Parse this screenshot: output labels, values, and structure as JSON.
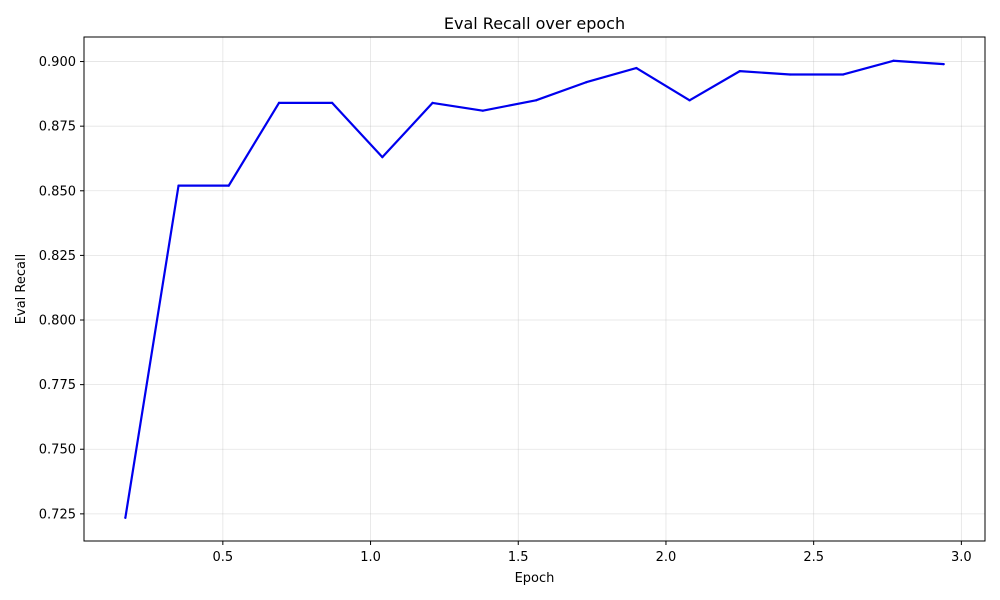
{
  "chart_data": {
    "type": "line",
    "title": "Eval Recall over epoch",
    "xlabel": "Epoch",
    "ylabel": "Eval Recall",
    "xlim": [
      0.03,
      3.08
    ],
    "ylim": [
      0.7145,
      0.9095
    ],
    "xticks": [
      0.5,
      1.0,
      1.5,
      2.0,
      2.5,
      3.0
    ],
    "xtick_labels": [
      "0.5",
      "1.0",
      "1.5",
      "2.0",
      "2.5",
      "3.0"
    ],
    "yticks": [
      0.725,
      0.75,
      0.775,
      0.8,
      0.825,
      0.85,
      0.875,
      0.9
    ],
    "ytick_labels": [
      "0.725",
      "0.750",
      "0.775",
      "0.800",
      "0.825",
      "0.850",
      "0.875",
      "0.900"
    ],
    "grid": true,
    "legend": "none",
    "series": [
      {
        "color": "#0000ee",
        "x": [
          0.17,
          0.35,
          0.52,
          0.69,
          0.87,
          1.04,
          1.21,
          1.38,
          1.56,
          1.73,
          1.9,
          2.08,
          2.25,
          2.42,
          2.6,
          2.77,
          2.94
        ],
        "y": [
          0.7235,
          0.852,
          0.852,
          0.884,
          0.884,
          0.863,
          0.884,
          0.881,
          0.885,
          0.892,
          0.8975,
          0.885,
          0.8963,
          0.895,
          0.895,
          0.9003,
          0.899
        ]
      }
    ]
  }
}
